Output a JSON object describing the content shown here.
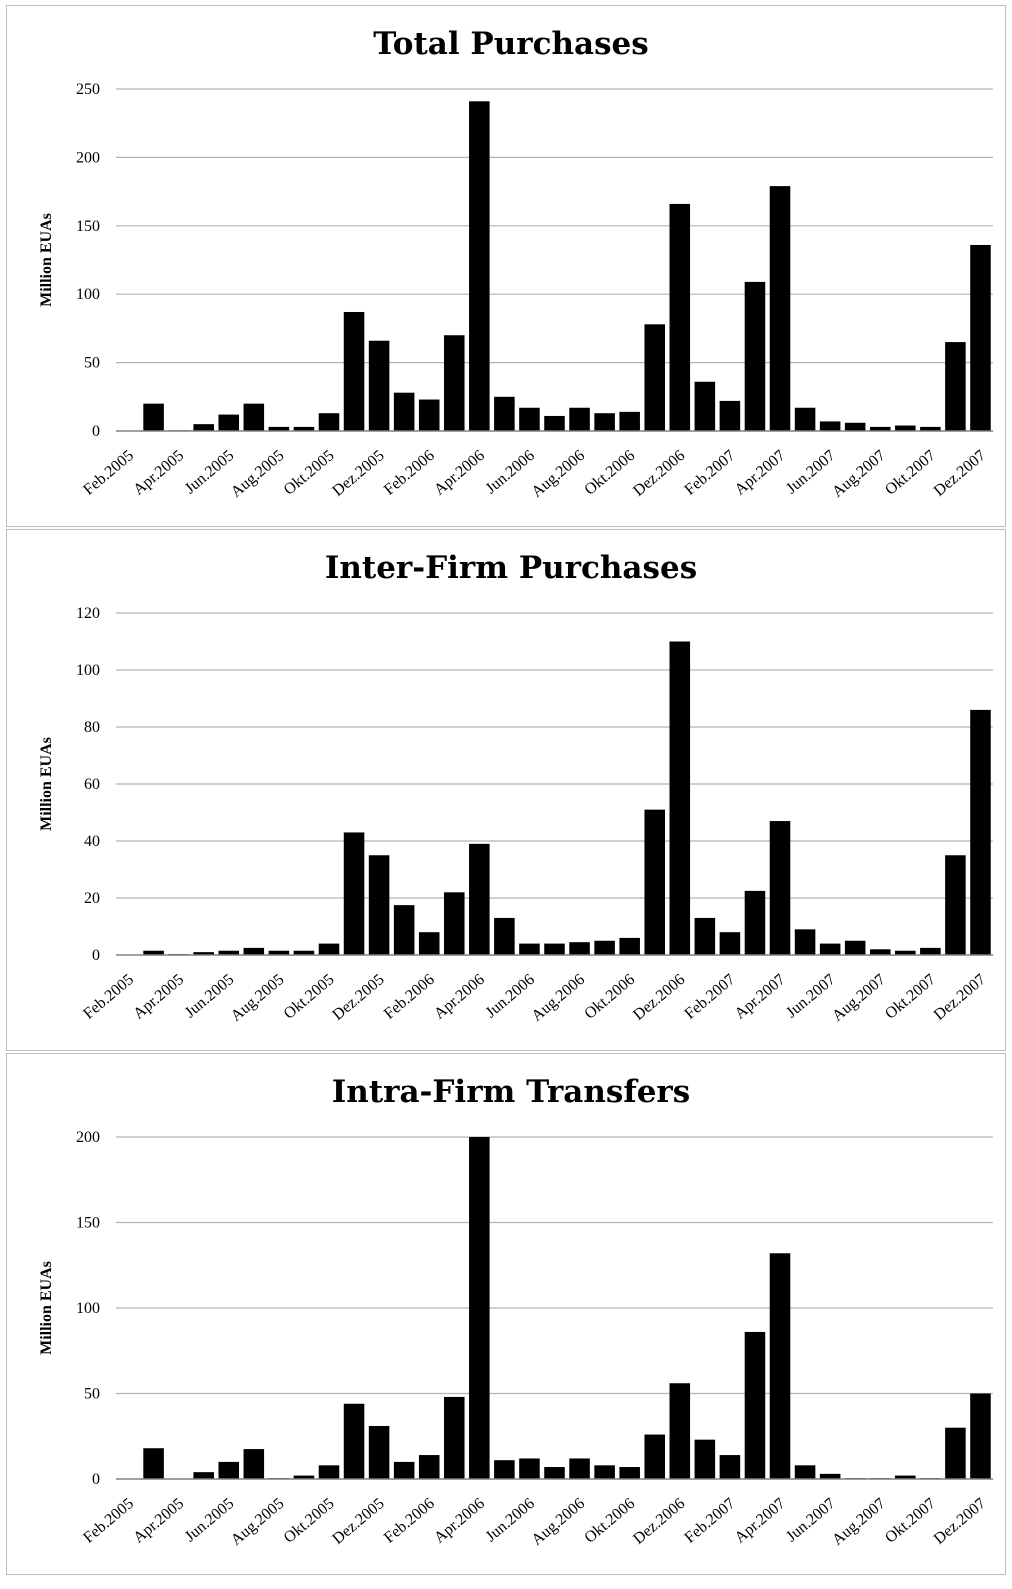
{
  "chart_data": [
    {
      "type": "bar",
      "title": "Total Purchases",
      "ylabel": "Million EUAs",
      "xlabel": "",
      "ylim": [
        0,
        250
      ],
      "yticks": [
        0,
        50,
        100,
        150,
        200,
        250
      ],
      "grid": true,
      "categories": [
        "Feb.2005",
        "Mrz.2005",
        "Apr.2005",
        "Mai.2005",
        "Jun.2005",
        "Jul.2005",
        "Aug.2005",
        "Sep.2005",
        "Okt.2005",
        "Nov.2005",
        "Dez.2005",
        "Jan.2006",
        "Feb.2006",
        "Mrz.2006",
        "Apr.2006",
        "Mai.2006",
        "Jun.2006",
        "Jul.2006",
        "Aug.2006",
        "Sep.2006",
        "Okt.2006",
        "Nov.2006",
        "Dez.2006",
        "Jan.2007",
        "Feb.2007",
        "Mrz.2007",
        "Apr.2007",
        "Mai.2007",
        "Jun.2007",
        "Jul.2007",
        "Aug.2007",
        "Sep.2007",
        "Okt.2007",
        "Nov.2007",
        "Dez.2007"
      ],
      "tick_labels": [
        "Feb.2005",
        "Apr.2005",
        "Jun.2005",
        "Aug.2005",
        "Okt.2005",
        "Dez.2005",
        "Feb.2006",
        "Apr.2006",
        "Jun.2006",
        "Aug.2006",
        "Okt.2006",
        "Dez.2006",
        "Feb.2007",
        "Apr.2007",
        "Jun.2007",
        "Aug.2007",
        "Okt.2007",
        "Dez.2007"
      ],
      "values": [
        0,
        20,
        0.5,
        5,
        12,
        20,
        3,
        3,
        13,
        87,
        66,
        28,
        23,
        70,
        241,
        25,
        17,
        11,
        17,
        13,
        14,
        78,
        166,
        36,
        22,
        109,
        179,
        17,
        7,
        6,
        3,
        4,
        3,
        65,
        136
      ]
    },
    {
      "type": "bar",
      "title": "Inter-Firm Purchases",
      "ylabel": "Million EUAs",
      "xlabel": "",
      "ylim": [
        0,
        120
      ],
      "yticks": [
        0,
        20,
        40,
        60,
        80,
        100,
        120
      ],
      "grid": true,
      "categories": [
        "Feb.2005",
        "Mrz.2005",
        "Apr.2005",
        "Mai.2005",
        "Jun.2005",
        "Jul.2005",
        "Aug.2005",
        "Sep.2005",
        "Okt.2005",
        "Nov.2005",
        "Dez.2005",
        "Jan.2006",
        "Feb.2006",
        "Mrz.2006",
        "Apr.2006",
        "Mai.2006",
        "Jun.2006",
        "Jul.2006",
        "Aug.2006",
        "Sep.2006",
        "Okt.2006",
        "Nov.2006",
        "Dez.2006",
        "Jan.2007",
        "Feb.2007",
        "Mrz.2007",
        "Apr.2007",
        "Mai.2007",
        "Jun.2007",
        "Jul.2007",
        "Aug.2007",
        "Sep.2007",
        "Okt.2007",
        "Nov.2007",
        "Dez.2007"
      ],
      "tick_labels": [
        "Feb.2005",
        "Apr.2005",
        "Jun.2005",
        "Aug.2005",
        "Okt.2005",
        "Dez.2005",
        "Feb.2006",
        "Apr.2006",
        "Jun.2006",
        "Aug.2006",
        "Okt.2006",
        "Dez.2006",
        "Feb.2007",
        "Apr.2007",
        "Jun.2007",
        "Aug.2007",
        "Okt.2007",
        "Dez.2007"
      ],
      "values": [
        0,
        1.5,
        0.3,
        1,
        1.5,
        2.5,
        1.5,
        1.5,
        4,
        43,
        35,
        17.5,
        8,
        22,
        39,
        13,
        4,
        4,
        4.5,
        5,
        6,
        51,
        110,
        13,
        8,
        22.5,
        47,
        9,
        4,
        5,
        2,
        1.5,
        2.5,
        35,
        86
      ]
    },
    {
      "type": "bar",
      "title": "Intra-Firm Transfers",
      "ylabel": "Million EUAs",
      "xlabel": "",
      "ylim": [
        0,
        200
      ],
      "yticks": [
        0,
        50,
        100,
        150,
        200
      ],
      "grid": true,
      "categories": [
        "Feb.2005",
        "Mrz.2005",
        "Apr.2005",
        "Mai.2005",
        "Jun.2005",
        "Jul.2005",
        "Aug.2005",
        "Sep.2005",
        "Okt.2005",
        "Nov.2005",
        "Dez.2005",
        "Jan.2006",
        "Feb.2006",
        "Mrz.2006",
        "Apr.2006",
        "Mai.2006",
        "Jun.2006",
        "Jul.2006",
        "Aug.2006",
        "Sep.2006",
        "Okt.2006",
        "Nov.2006",
        "Dez.2006",
        "Jan.2007",
        "Feb.2007",
        "Mrz.2007",
        "Apr.2007",
        "Mai.2007",
        "Jun.2007",
        "Jul.2007",
        "Aug.2007",
        "Sep.2007",
        "Okt.2007",
        "Nov.2007",
        "Dez.2007"
      ],
      "tick_labels": [
        "Feb.2005",
        "Apr.2005",
        "Jun.2005",
        "Aug.2005",
        "Okt.2005",
        "Dez.2005",
        "Feb.2006",
        "Apr.2006",
        "Jun.2006",
        "Aug.2006",
        "Okt.2006",
        "Dez.2006",
        "Feb.2007",
        "Apr.2007",
        "Jun.2007",
        "Aug.2007",
        "Okt.2007",
        "Dez.2007"
      ],
      "values": [
        0,
        18,
        0.3,
        4,
        10,
        17.5,
        0.5,
        2,
        8,
        44,
        31,
        10,
        14,
        48,
        200,
        11,
        12,
        7,
        12,
        8,
        7,
        26,
        56,
        23,
        14,
        86,
        132,
        8,
        3,
        0.5,
        0.5,
        2,
        0.5,
        30,
        50
      ]
    }
  ],
  "colors": {
    "bar": "#000000",
    "grid": "#b3b3b3",
    "axis": "#808080",
    "border": "#bdbdbd"
  }
}
